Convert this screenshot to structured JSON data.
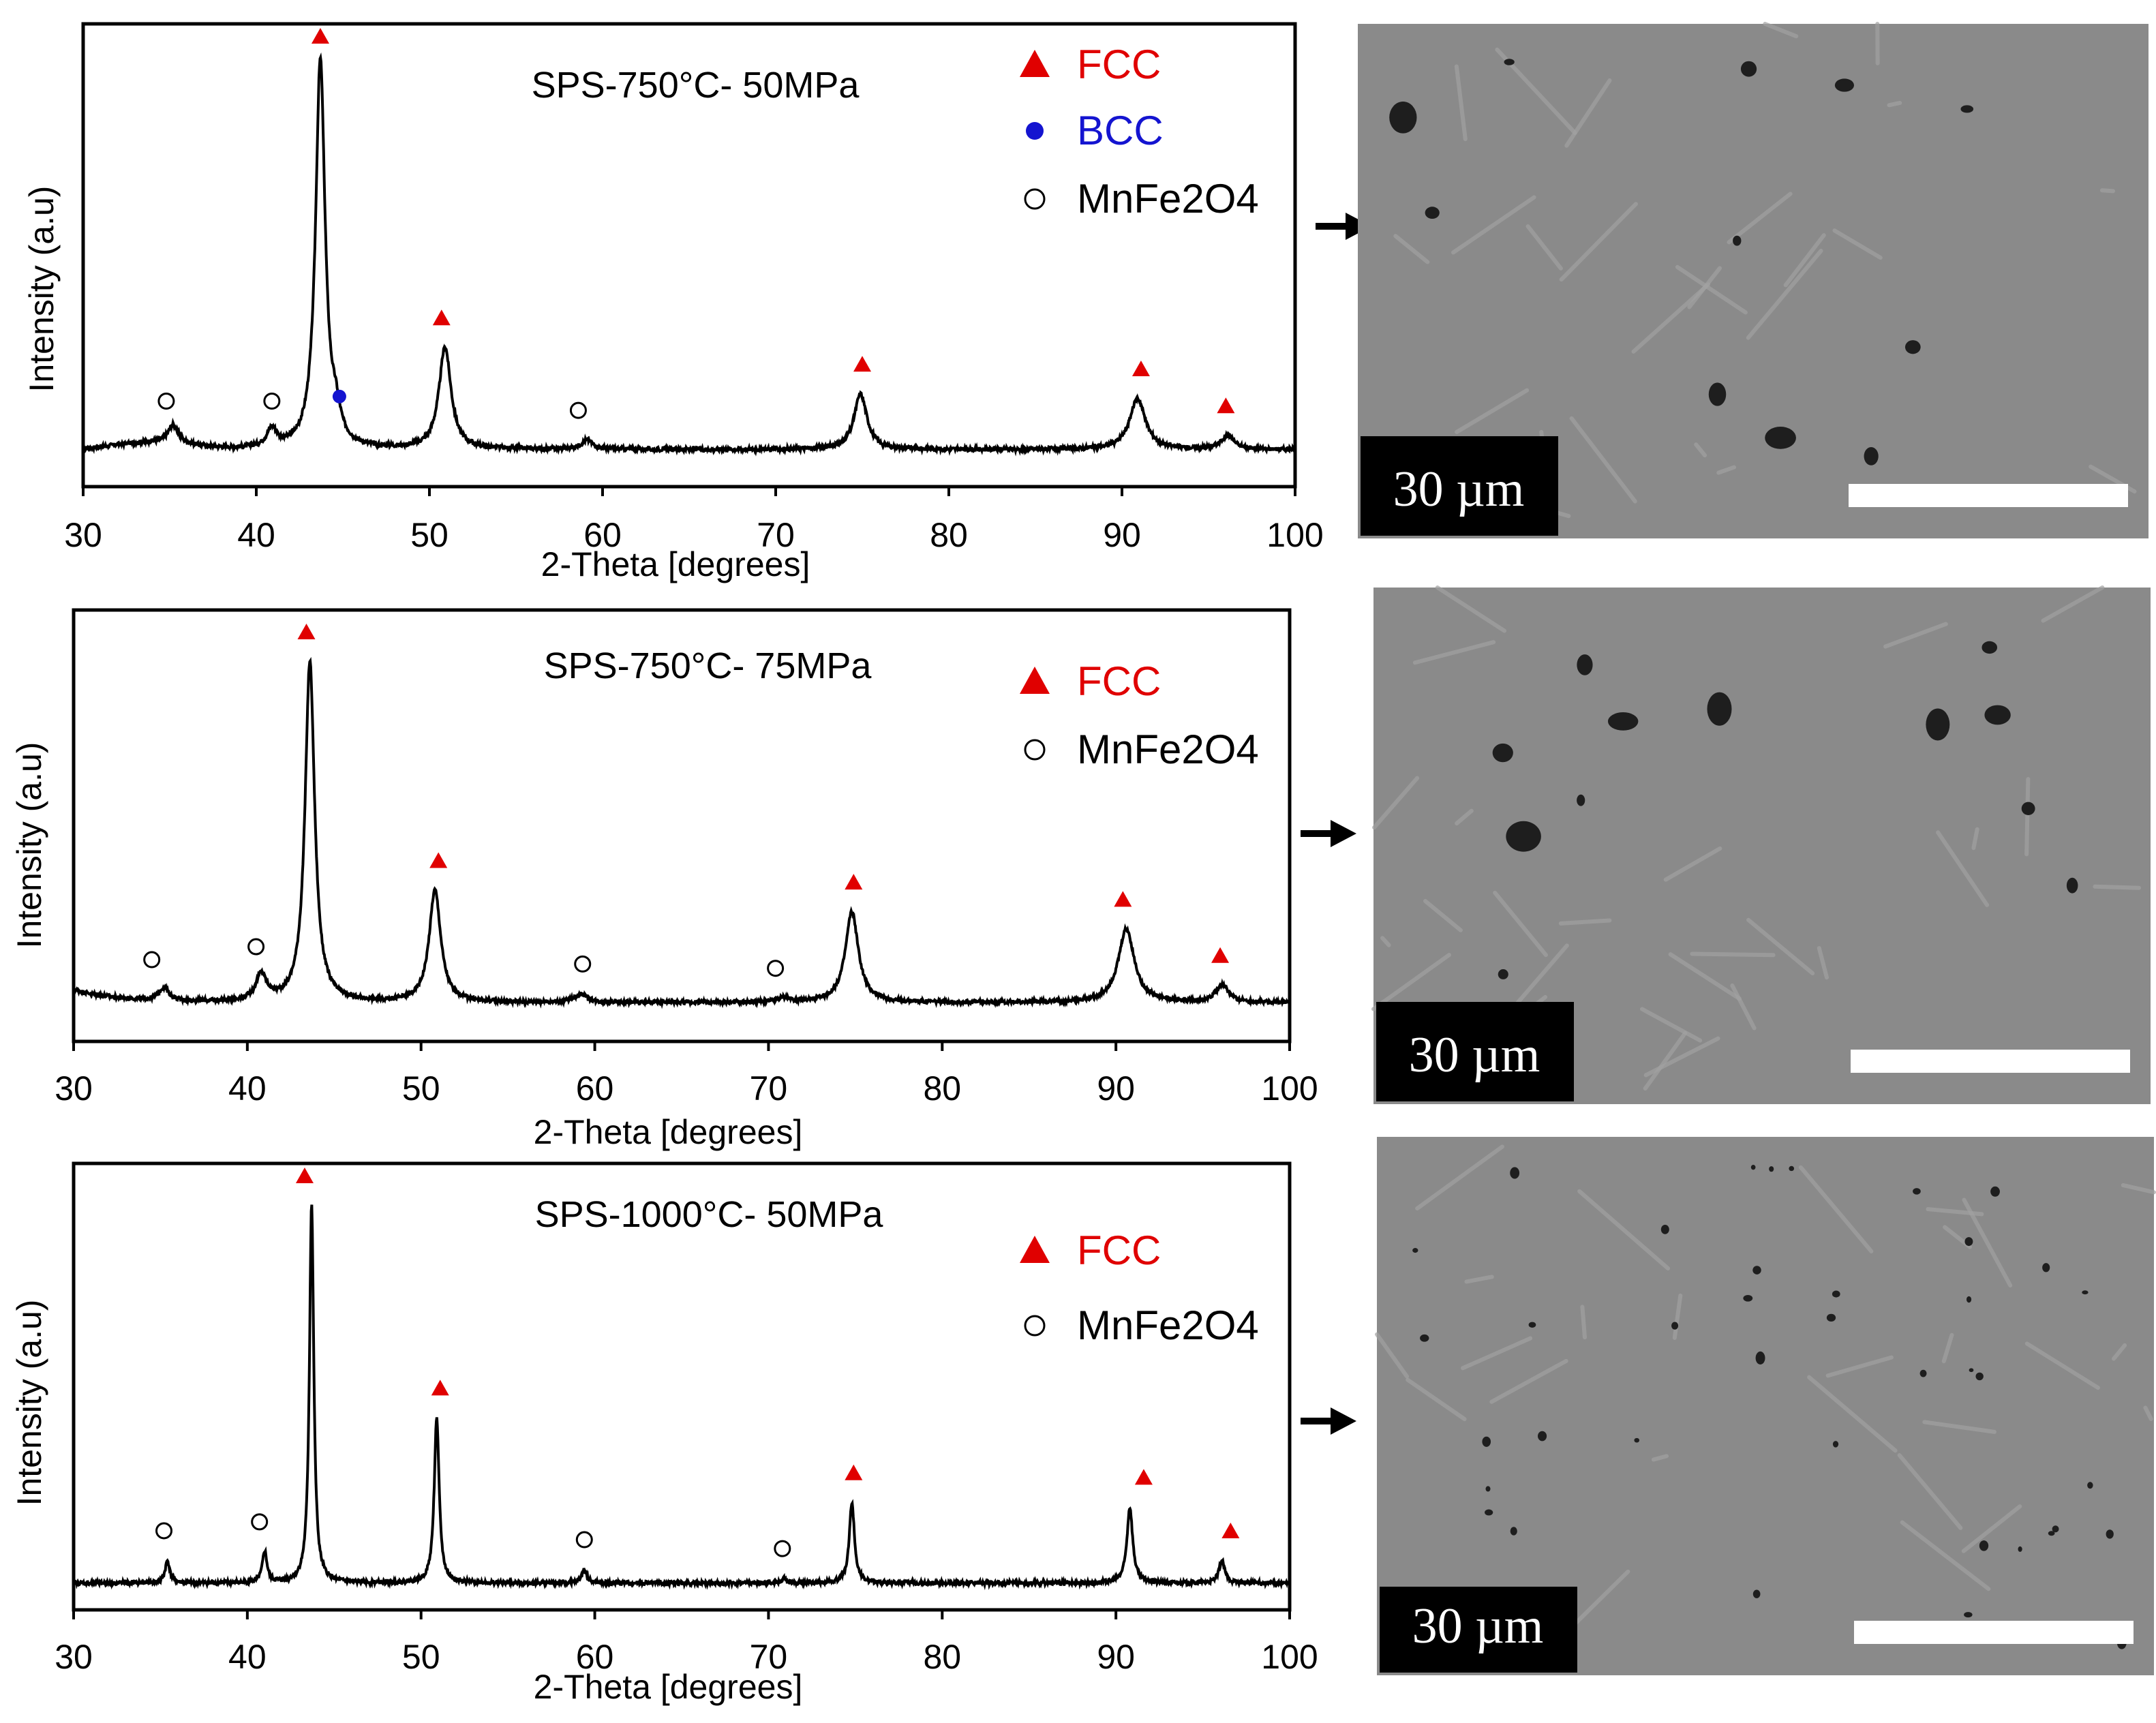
{
  "colors": {
    "fcc": "#e00000",
    "bcc": "#1414d0",
    "oxide": "#000000",
    "line": "#000000",
    "scale_box": "#000000",
    "scale_bar": "#ffffff",
    "micrograph": "#8a8a8a"
  },
  "panels": [
    {
      "id": "p1",
      "label": "SPS-750°C- 50MPa",
      "ylabel": "Intensity (a.u)",
      "xlabel": "2-Theta [degrees]",
      "scale_label": "30 µm",
      "legend": [
        {
          "marker": "triangle",
          "color_key": "fcc",
          "text": "FCC"
        },
        {
          "marker": "filled-circle",
          "color_key": "bcc",
          "text": "BCC"
        },
        {
          "marker": "open-circle",
          "color_key": "oxide",
          "text": "MnFe2O4"
        }
      ]
    },
    {
      "id": "p2",
      "label": "SPS-750°C- 75MPa",
      "ylabel": "Intensity (a.u)",
      "xlabel": "2-Theta [degrees]",
      "scale_label": "30 µm",
      "legend": [
        {
          "marker": "triangle",
          "color_key": "fcc",
          "text": "FCC"
        },
        {
          "marker": "open-circle",
          "color_key": "oxide",
          "text": "MnFe2O4"
        }
      ]
    },
    {
      "id": "p3",
      "label": "SPS-1000°C- 50MPa",
      "ylabel": "Intensity (a.u)",
      "xlabel": "2-Theta [degrees]",
      "scale_label": "30 µm",
      "legend": [
        {
          "marker": "triangle",
          "color_key": "fcc",
          "text": "FCC"
        },
        {
          "marker": "open-circle",
          "color_key": "oxide",
          "text": "MnFe2O4"
        }
      ]
    }
  ],
  "chart_data": [
    {
      "type": "line",
      "title": "SPS-750°C- 50MPa",
      "xlabel": "2-Theta [degrees]",
      "ylabel": "Intensity (a.u)",
      "xlim": [
        30,
        100
      ],
      "ylim": [
        0,
        100
      ],
      "xticks": [
        30,
        40,
        50,
        60,
        70,
        80,
        90,
        100
      ],
      "baseline": 8,
      "peaks": [
        {
          "x": 35.2,
          "height": 4,
          "width": 0.35
        },
        {
          "x": 40.9,
          "height": 4,
          "width": 0.35
        },
        {
          "x": 43.7,
          "height": 84,
          "width": 0.33
        },
        {
          "x": 44.6,
          "height": 5,
          "width": 0.3
        },
        {
          "x": 50.9,
          "height": 22,
          "width": 0.42
        },
        {
          "x": 59.1,
          "height": 2,
          "width": 0.4
        },
        {
          "x": 74.9,
          "height": 12,
          "width": 0.45
        },
        {
          "x": 90.9,
          "height": 11,
          "width": 0.55
        },
        {
          "x": 96.1,
          "height": 3,
          "width": 0.45
        }
      ],
      "markers": [
        {
          "phase": "FCC",
          "x": 43.7
        },
        {
          "phase": "FCC",
          "x": 50.7
        },
        {
          "phase": "FCC",
          "x": 75.0
        },
        {
          "phase": "FCC",
          "x": 91.1
        },
        {
          "phase": "FCC",
          "x": 96.0
        },
        {
          "phase": "BCC",
          "x": 44.8
        },
        {
          "phase": "MnFe2O4",
          "x": 34.8
        },
        {
          "phase": "MnFe2O4",
          "x": 40.9
        },
        {
          "phase": "MnFe2O4",
          "x": 58.6
        }
      ]
    },
    {
      "type": "line",
      "title": "SPS-750°C- 75MPa",
      "xlabel": "2-Theta [degrees]",
      "ylabel": "Intensity (a.u)",
      "xlim": [
        30,
        100
      ],
      "ylim": [
        0,
        100
      ],
      "xticks": [
        30,
        40,
        50,
        60,
        70,
        80,
        90,
        100
      ],
      "baseline": 9,
      "peaks": [
        {
          "x": 35.2,
          "height": 3,
          "width": 0.35
        },
        {
          "x": 40.8,
          "height": 6,
          "width": 0.38
        },
        {
          "x": 43.6,
          "height": 79,
          "width": 0.33
        },
        {
          "x": 50.8,
          "height": 26,
          "width": 0.4
        },
        {
          "x": 59.2,
          "height": 2,
          "width": 0.4
        },
        {
          "x": 70.9,
          "height": 1,
          "width": 0.4
        },
        {
          "x": 74.8,
          "height": 21,
          "width": 0.45
        },
        {
          "x": 90.6,
          "height": 17,
          "width": 0.55
        },
        {
          "x": 96.1,
          "height": 4,
          "width": 0.45
        }
      ],
      "markers": [
        {
          "phase": "FCC",
          "x": 43.4
        },
        {
          "phase": "FCC",
          "x": 51.0
        },
        {
          "phase": "FCC",
          "x": 74.9
        },
        {
          "phase": "FCC",
          "x": 90.4
        },
        {
          "phase": "FCC",
          "x": 96.0
        },
        {
          "phase": "MnFe2O4",
          "x": 34.5
        },
        {
          "phase": "MnFe2O4",
          "x": 40.5
        },
        {
          "phase": "MnFe2O4",
          "x": 59.3
        },
        {
          "phase": "MnFe2O4",
          "x": 70.4
        }
      ]
    },
    {
      "type": "line",
      "title": "SPS-1000°C- 50MPa",
      "xlabel": "2-Theta [degrees]",
      "ylabel": "Intensity (a.u)",
      "xlim": [
        30,
        100
      ],
      "ylim": [
        0,
        100
      ],
      "xticks": [
        30,
        40,
        50,
        60,
        70,
        80,
        90,
        100
      ],
      "baseline": 6,
      "peaks": [
        {
          "x": 35.4,
          "height": 5,
          "width": 0.16
        },
        {
          "x": 41.0,
          "height": 7,
          "width": 0.16
        },
        {
          "x": 43.7,
          "height": 85,
          "width": 0.15
        },
        {
          "x": 50.9,
          "height": 37,
          "width": 0.17
        },
        {
          "x": 59.4,
          "height": 3,
          "width": 0.17
        },
        {
          "x": 70.9,
          "height": 1,
          "width": 0.17
        },
        {
          "x": 74.8,
          "height": 18,
          "width": 0.18
        },
        {
          "x": 90.8,
          "height": 17,
          "width": 0.2
        },
        {
          "x": 96.1,
          "height": 5,
          "width": 0.2
        }
      ],
      "markers": [
        {
          "phase": "FCC",
          "x": 43.3
        },
        {
          "phase": "FCC",
          "x": 51.1
        },
        {
          "phase": "FCC",
          "x": 74.9
        },
        {
          "phase": "FCC",
          "x": 91.6
        },
        {
          "phase": "FCC",
          "x": 96.6
        },
        {
          "phase": "MnFe2O4",
          "x": 35.2
        },
        {
          "phase": "MnFe2O4",
          "x": 40.7
        },
        {
          "phase": "MnFe2O4",
          "x": 59.4
        },
        {
          "phase": "MnFe2O4",
          "x": 70.8
        }
      ]
    }
  ]
}
